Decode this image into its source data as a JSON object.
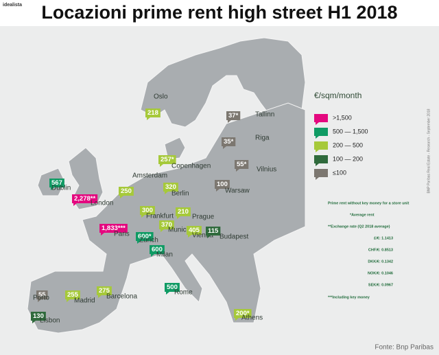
{
  "header": {
    "brand": "idealista",
    "title": "Locazioni prime rent high street H1 2018"
  },
  "legend": {
    "title": "€/sqm/month",
    "items": [
      {
        "label": ">1,500",
        "color": "#e4087f"
      },
      {
        "label": "500 — 1,500",
        "color": "#0f9b64"
      },
      {
        "label": "200 — 500",
        "color": "#a6c93a"
      },
      {
        "label": "100 — 200",
        "color": "#2f6a3c"
      },
      {
        "label": "≤100",
        "color": "#7c7770"
      }
    ]
  },
  "notes": [
    "Prime rent without key money for a store unit",
    "*Average rent",
    "**Exchange rate (Q2 2018 average)",
    "£/€: 1.1413",
    "CHF/€: 0.8513",
    "DKK/€: 0.1342",
    "NOK/€: 0.1046",
    "SEK/€: 0.0967",
    "***Including key money"
  ],
  "credit": "BNP Paribas Real Estate - Research - September 2018",
  "source": "Fonte: Bnp Paribas",
  "cities": [
    {
      "name": "Oslo",
      "value": "218",
      "color": "#a6c93a"
    },
    {
      "name": "Tallinn",
      "value": "37*",
      "color": "#7c7770"
    },
    {
      "name": "Riga",
      "value": "35*",
      "color": "#7c7770"
    },
    {
      "name": "Copenhagen",
      "value": "257*",
      "color": "#a6c93a"
    },
    {
      "name": "Vilnius",
      "value": "55*",
      "color": "#7c7770"
    },
    {
      "name": "Dublin",
      "value": "567",
      "color": "#0f9b64"
    },
    {
      "name": "Amsterdam",
      "value": "250",
      "color": "#a6c93a"
    },
    {
      "name": "Berlin",
      "value": "320",
      "color": "#a6c93a"
    },
    {
      "name": "Warsaw",
      "value": "100",
      "color": "#7c7770"
    },
    {
      "name": "London",
      "value": "2,278**",
      "color": "#e4087f"
    },
    {
      "name": "Frankfurt",
      "value": "300",
      "color": "#a6c93a"
    },
    {
      "name": "Prague",
      "value": "210",
      "color": "#a6c93a"
    },
    {
      "name": "Paris",
      "value": "1,833***",
      "color": "#e4087f"
    },
    {
      "name": "Munich",
      "value": "370",
      "color": "#a6c93a"
    },
    {
      "name": "Vienna",
      "value": "405",
      "color": "#a6c93a"
    },
    {
      "name": "Budapest",
      "value": "115",
      "color": "#2f6a3c"
    },
    {
      "name": "Zurich",
      "value": "600*",
      "color": "#0f9b64"
    },
    {
      "name": "Milan",
      "value": "600",
      "color": "#0f9b64"
    },
    {
      "name": "Rome",
      "value": "500",
      "color": "#0f9b64"
    },
    {
      "name": "Porto",
      "value": "55",
      "color": "#7c7770"
    },
    {
      "name": "Madrid",
      "value": "255",
      "color": "#a6c93a"
    },
    {
      "name": "Barcelona",
      "value": "275",
      "color": "#a6c93a"
    },
    {
      "name": "Lisbon",
      "value": "130",
      "color": "#2f6a3c"
    },
    {
      "name": "Athens",
      "value": "200*",
      "color": "#a6c93a"
    }
  ]
}
